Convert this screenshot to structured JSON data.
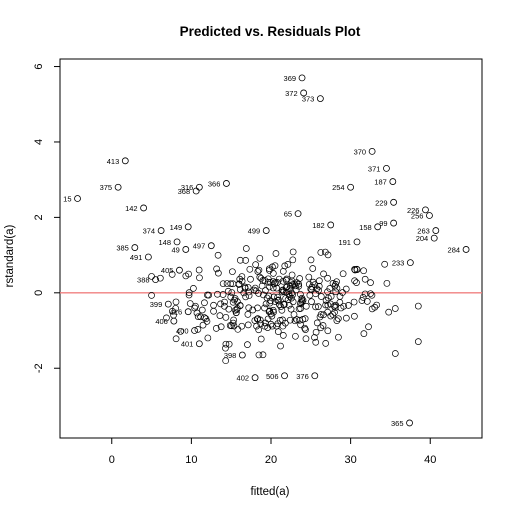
{
  "chart_data": {
    "type": "scatter",
    "title": "Predicted vs. Residuals Plot",
    "xlabel": "fitted(a)",
    "ylabel": "rstandard(a)",
    "xlim": [
      -6.5,
      46.5
    ],
    "ylim": [
      -3.85,
      6.2
    ],
    "xticks": [
      0,
      10,
      20,
      30,
      40
    ],
    "yticks": [
      -2,
      0,
      2,
      4,
      6
    ],
    "reference_line": {
      "y": 0,
      "color": "#f08080"
    },
    "point_style": "open-circle",
    "labeled_points": [
      {
        "label": "369",
        "x": 23.9,
        "y": 5.7
      },
      {
        "label": "372",
        "x": 24.1,
        "y": 5.3
      },
      {
        "label": "373",
        "x": 26.2,
        "y": 5.15
      },
      {
        "label": "413",
        "x": 1.7,
        "y": 3.5
      },
      {
        "label": "375",
        "x": 0.8,
        "y": 2.8
      },
      {
        "label": "366",
        "x": 14.4,
        "y": 2.9
      },
      {
        "label": "316",
        "x": 11.0,
        "y": 2.8
      },
      {
        "label": "368",
        "x": 10.6,
        "y": 2.7
      },
      {
        "label": "15",
        "x": -4.3,
        "y": 2.5
      },
      {
        "label": "142",
        "x": 4.0,
        "y": 2.25
      },
      {
        "label": "65",
        "x": 23.4,
        "y": 2.1
      },
      {
        "label": "182",
        "x": 27.5,
        "y": 1.8
      },
      {
        "label": "374",
        "x": 6.2,
        "y": 1.65
      },
      {
        "label": "149",
        "x": 9.6,
        "y": 1.75
      },
      {
        "label": "370",
        "x": 32.7,
        "y": 3.75
      },
      {
        "label": "371",
        "x": 34.5,
        "y": 3.3
      },
      {
        "label": "187",
        "x": 35.3,
        "y": 2.95
      },
      {
        "label": "254",
        "x": 30.0,
        "y": 2.8
      },
      {
        "label": "229",
        "x": 35.4,
        "y": 2.4
      },
      {
        "label": "226",
        "x": 39.4,
        "y": 2.2
      },
      {
        "label": "256",
        "x": 39.9,
        "y": 2.05
      },
      {
        "label": "158",
        "x": 33.4,
        "y": 1.75
      },
      {
        "label": "99",
        "x": 35.4,
        "y": 1.85
      },
      {
        "label": "263",
        "x": 40.7,
        "y": 1.65
      },
      {
        "label": "191",
        "x": 30.8,
        "y": 1.35
      },
      {
        "label": "204",
        "x": 40.5,
        "y": 1.45
      },
      {
        "label": "284",
        "x": 44.5,
        "y": 1.15
      },
      {
        "label": "233",
        "x": 37.5,
        "y": 0.8
      },
      {
        "label": "385",
        "x": 2.9,
        "y": 1.2
      },
      {
        "label": "491",
        "x": 4.6,
        "y": 0.95
      },
      {
        "label": "405",
        "x": 8.5,
        "y": 0.6
      },
      {
        "label": "388",
        "x": 5.5,
        "y": 0.35
      },
      {
        "label": "399",
        "x": 7.1,
        "y": -0.3
      },
      {
        "label": "416",
        "x": 9.6,
        "y": -0.5
      },
      {
        "label": "406",
        "x": 7.8,
        "y": -0.75
      },
      {
        "label": "400",
        "x": 10.4,
        "y": -1.0
      },
      {
        "label": "401",
        "x": 11.0,
        "y": -1.35
      },
      {
        "label": "398",
        "x": 16.4,
        "y": -1.65
      },
      {
        "label": "402",
        "x": 18.0,
        "y": -2.25
      },
      {
        "label": "506",
        "x": 21.7,
        "y": -2.2
      },
      {
        "label": "376",
        "x": 25.5,
        "y": -2.2
      },
      {
        "label": "365",
        "x": 37.4,
        "y": -3.45
      },
      {
        "label": "148",
        "x": 8.2,
        "y": 1.35
      },
      {
        "label": "497",
        "x": 12.5,
        "y": 1.25
      },
      {
        "label": "499",
        "x": 19.4,
        "y": 1.65
      },
      {
        "label": "49",
        "x": 9.3,
        "y": 1.15
      }
    ],
    "cluster_count": 340,
    "cluster_center": [
      21.0,
      -0.2
    ],
    "cluster_spread": [
      6.5,
      0.55
    ],
    "cluster_xrange": [
      5.0,
      38.5
    ],
    "cluster_yrange": [
      -1.8,
      1.5
    ]
  }
}
